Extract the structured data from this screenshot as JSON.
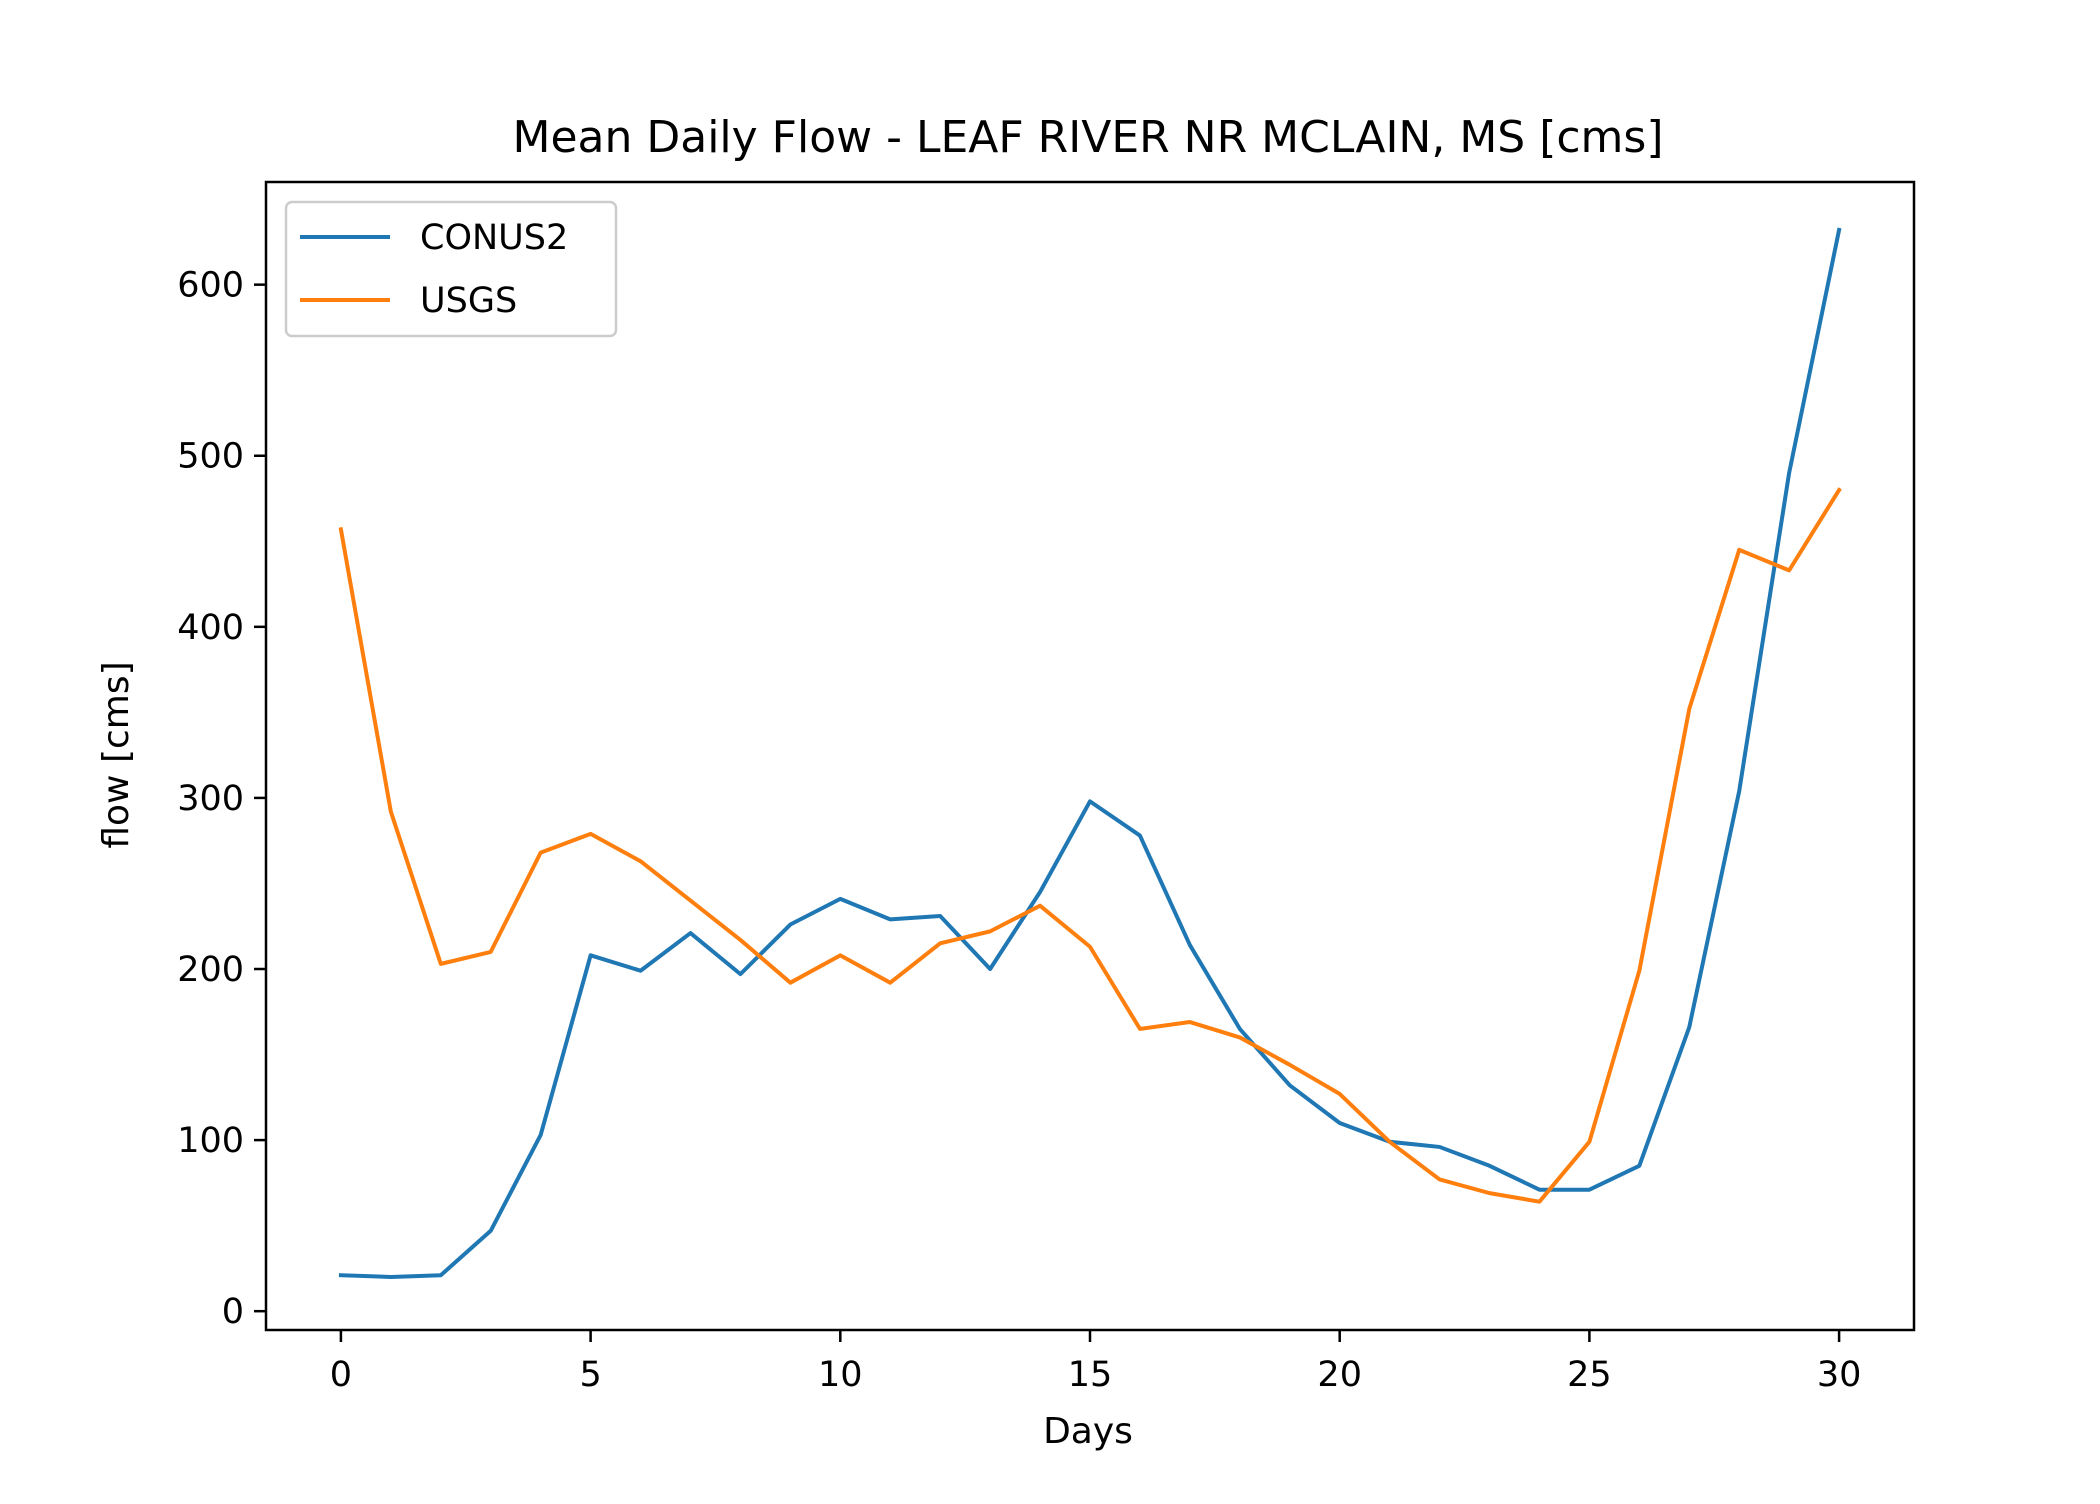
{
  "chart_data": {
    "type": "line",
    "title": "Mean Daily Flow - LEAF RIVER NR MCLAIN, MS [cms]",
    "xlabel": "Days",
    "ylabel": "flow [cms]",
    "xlim": [
      -1.5,
      31.5
    ],
    "ylim": [
      -11,
      660
    ],
    "x_ticks": [
      0,
      5,
      10,
      15,
      20,
      25,
      30
    ],
    "y_ticks": [
      0,
      100,
      200,
      300,
      400,
      500,
      600
    ],
    "grid": false,
    "legend_position": "top-left",
    "x": [
      0,
      1,
      2,
      3,
      4,
      5,
      6,
      7,
      8,
      9,
      10,
      11,
      12,
      13,
      14,
      15,
      16,
      17,
      18,
      19,
      20,
      21,
      22,
      23,
      24,
      25,
      26,
      27,
      28,
      29,
      30
    ],
    "series": [
      {
        "name": "CONUS2",
        "color": "#1f77b4",
        "values": [
          21,
          20,
          21,
          47,
          103,
          208,
          199,
          221,
          197,
          226,
          241,
          229,
          231,
          200,
          245,
          298,
          278,
          214,
          165,
          132,
          110,
          99,
          96,
          85,
          71,
          71,
          85,
          166,
          304,
          490,
          632
        ]
      },
      {
        "name": "USGS",
        "color": "#ff7f0e",
        "values": [
          457,
          292,
          203,
          210,
          268,
          279,
          263,
          240,
          217,
          192,
          208,
          192,
          215,
          222,
          237,
          213,
          165,
          169,
          160,
          144,
          127,
          99,
          77,
          69,
          64,
          99,
          199,
          352,
          445,
          433,
          480
        ]
      }
    ]
  }
}
